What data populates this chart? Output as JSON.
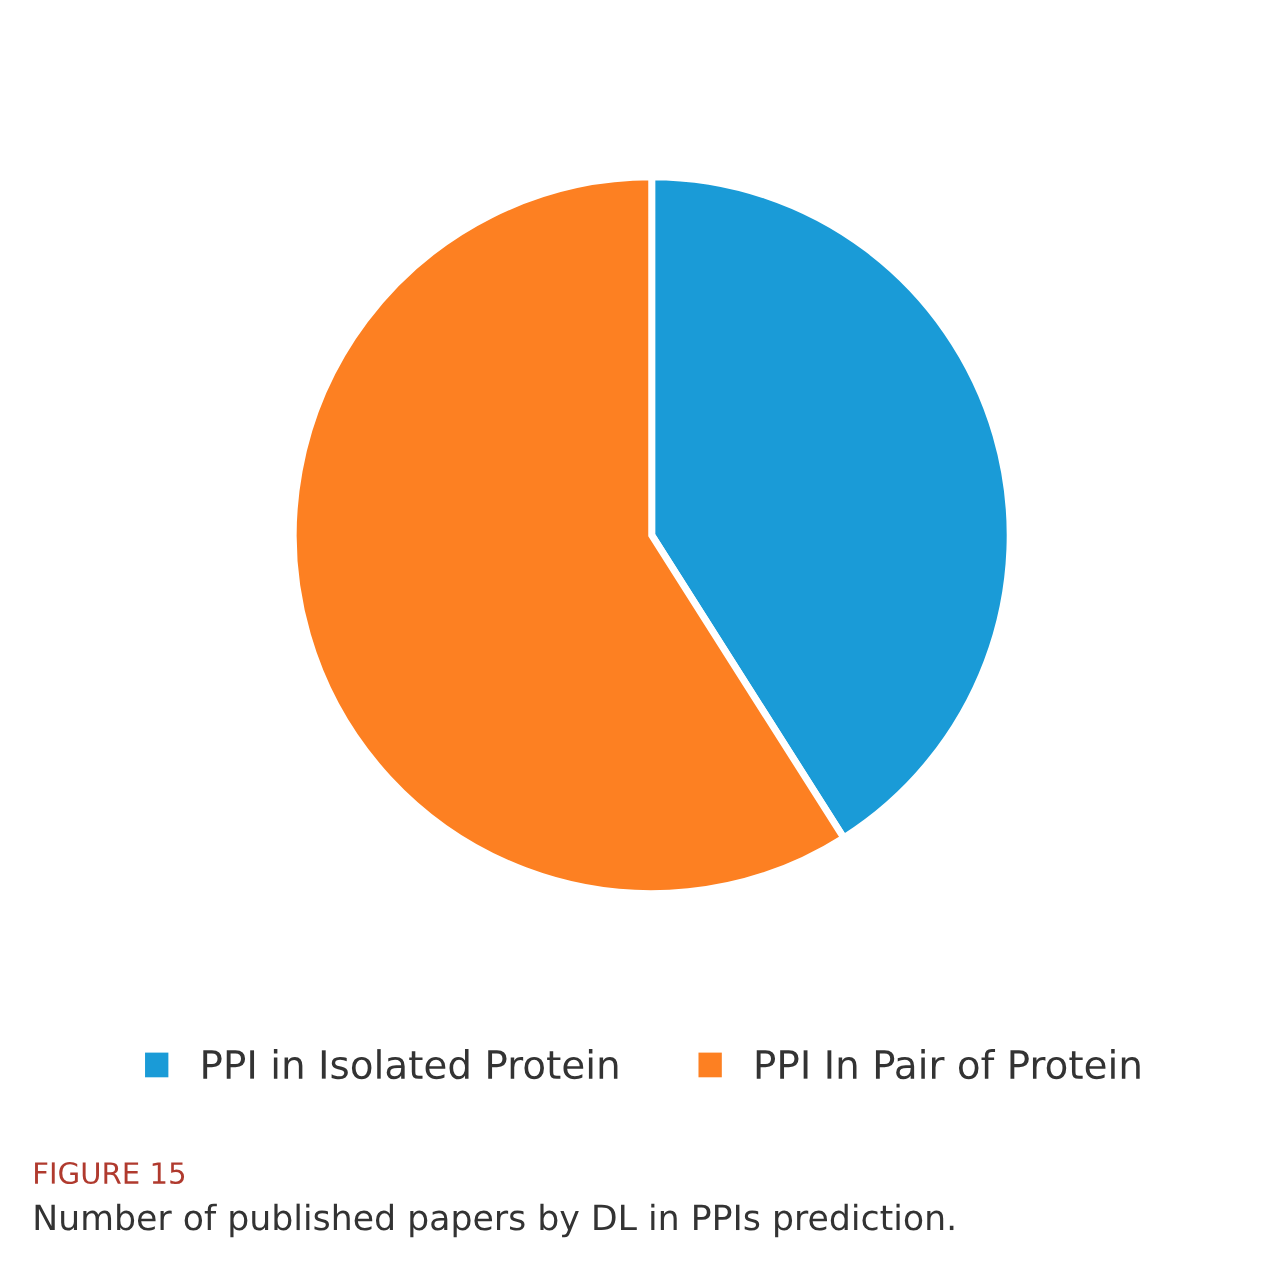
{
  "chart_data": {
    "type": "pie",
    "categories": [
      "PPI in Isolated Protein",
      "PPI In Pair of Protein"
    ],
    "values": [
      41,
      59
    ],
    "colors": [
      "#1a9bd7",
      "#fd8022"
    ],
    "legend": "bottom",
    "annotations": [
      "FIGURE 15",
      "Number of published papers by DL in PPIs prediction."
    ]
  }
}
